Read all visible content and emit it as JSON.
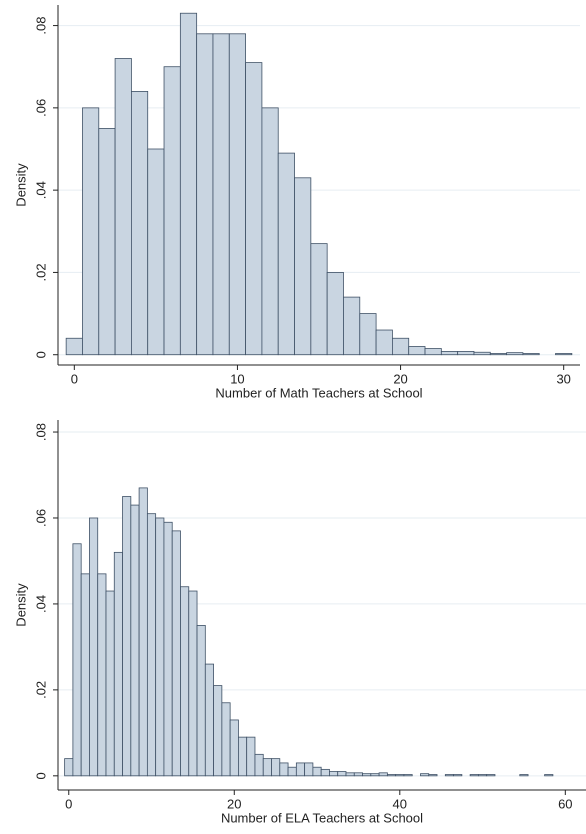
{
  "chart_data": [
    {
      "type": "histogram",
      "xlabel": "Number of Math Teachers at School",
      "ylabel": "Density",
      "bins": [
        -0.5,
        0.5,
        1.5,
        2.5,
        3.5,
        4.5,
        5.5,
        6.5,
        7.5,
        8.5,
        9.5,
        10.5,
        11.5,
        12.5,
        13.5,
        14.5,
        15.5,
        16.5,
        17.5,
        18.5,
        19.5,
        20.5,
        21.5,
        22.5,
        23.5,
        24.5,
        25.5,
        26.5,
        27.5,
        28.5,
        29.5,
        30.5
      ],
      "values": [
        0.004,
        0.06,
        0.055,
        0.072,
        0.064,
        0.05,
        0.07,
        0.083,
        0.078,
        0.078,
        0.078,
        0.071,
        0.06,
        0.049,
        0.043,
        0.027,
        0.02,
        0.014,
        0.01,
        0.006,
        0.004,
        0.002,
        0.0015,
        0.0008,
        0.0008,
        0.0006,
        0.0003,
        0.0005,
        0.0003,
        0,
        0.0003
      ],
      "color": "#c9d5e1",
      "edge_color": "#3f5166",
      "xlim": [
        -1,
        31
      ],
      "ylim": [
        -0.0025,
        0.085
      ],
      "xticks": [
        0,
        10,
        20,
        30
      ],
      "yticks": [
        0,
        {
          "value": 0.02,
          "label": ".02"
        },
        {
          "value": 0.04,
          "label": ".04"
        },
        {
          "value": 0.06,
          "label": ".06"
        },
        {
          "value": 0.08,
          "label": ".08"
        }
      ],
      "grid": true
    },
    {
      "type": "histogram",
      "xlabel": "Number of ELA Teachers at School",
      "ylabel": "Density",
      "bins": [
        -0.5,
        0.5,
        1.5,
        2.5,
        3.5,
        4.5,
        5.5,
        6.5,
        7.5,
        8.5,
        9.5,
        10.5,
        11.5,
        12.5,
        13.5,
        14.5,
        15.5,
        16.5,
        17.5,
        18.5,
        19.5,
        20.5,
        21.5,
        22.5,
        23.5,
        24.5,
        25.5,
        26.5,
        27.5,
        28.5,
        29.5,
        30.5,
        31.5,
        32.5,
        33.5,
        34.5,
        35.5,
        36.5,
        37.5,
        38.5,
        39.5,
        40.5,
        41.5,
        42.5,
        43.5,
        44.5,
        45.5,
        46.5,
        47.5,
        48.5,
        49.5,
        50.5,
        51.5,
        52.5,
        53.5,
        54.5,
        55.5,
        56.5,
        57.5,
        58.5
      ],
      "values": [
        0.004,
        0.054,
        0.047,
        0.06,
        0.047,
        0.043,
        0.052,
        0.065,
        0.063,
        0.067,
        0.061,
        0.06,
        0.059,
        0.057,
        0.044,
        0.043,
        0.035,
        0.026,
        0.021,
        0.017,
        0.013,
        0.009,
        0.009,
        0.005,
        0.004,
        0.004,
        0.003,
        0.002,
        0.003,
        0.003,
        0.002,
        0.0015,
        0.001,
        0.001,
        0.0007,
        0.0007,
        0.0005,
        0.0005,
        0.0007,
        0.0003,
        0.0003,
        0.0003,
        0,
        0.0005,
        0.0003,
        0,
        0.0003,
        0.0003,
        0,
        0.0003,
        0.0003,
        0.0003,
        0,
        0,
        0,
        0.0003,
        0,
        0,
        0.0003
      ],
      "color": "#c9d5e1",
      "edge_color": "#3f5166",
      "xlim": [
        -1.3,
        62.5
      ],
      "ylim": [
        -0.0033,
        0.0828
      ],
      "xticks": [
        0,
        20,
        40,
        60
      ],
      "yticks": [
        0,
        {
          "value": 0.02,
          "label": ".02"
        },
        {
          "value": 0.04,
          "label": ".04"
        },
        {
          "value": 0.06,
          "label": ".06"
        },
        {
          "value": 0.08,
          "label": ".08"
        }
      ],
      "grid": true
    }
  ]
}
